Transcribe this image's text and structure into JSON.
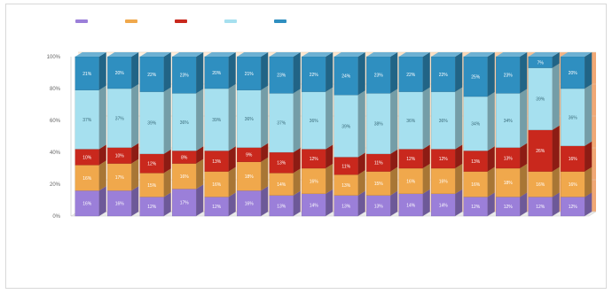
{
  "chart_data": {
    "type": "bar",
    "stacked": true,
    "percent_stacked": true,
    "three_d": true,
    "categories": [
      "",
      "",
      "",
      "",
      "",
      "",
      "",
      "",
      "",
      "",
      "",
      "",
      "",
      "",
      "",
      ""
    ],
    "series": [
      {
        "name": "",
        "color": "#9b7fd9",
        "values": [
          16,
          16,
          12,
          17,
          12,
          16,
          13,
          14,
          13,
          13,
          14,
          14,
          12,
          12,
          12,
          12
        ]
      },
      {
        "name": "",
        "color": "#f0a84c",
        "values": [
          16,
          17,
          15,
          16,
          16,
          18,
          14,
          16,
          13,
          15,
          16,
          16,
          16,
          18,
          16,
          16
        ]
      },
      {
        "name": "",
        "color": "#c9281d",
        "values": [
          10,
          10,
          12,
          8,
          13,
          9,
          13,
          12,
          11,
          11,
          12,
          12,
          13,
          13,
          26,
          16
        ]
      },
      {
        "name": "",
        "color": "#a6e0ef",
        "values": [
          37,
          37,
          39,
          36,
          39,
          36,
          37,
          36,
          39,
          38,
          36,
          36,
          34,
          34,
          39,
          36
        ]
      },
      {
        "name": "",
        "color": "#2f8fc0",
        "values": [
          21,
          20,
          22,
          23,
          20,
          21,
          23,
          22,
          24,
          23,
          22,
          22,
          25,
          23,
          7,
          20
        ]
      }
    ],
    "ylim": [
      0,
      100
    ],
    "yticks": [
      "0%",
      "20%",
      "40%",
      "60%",
      "80%",
      "100%"
    ],
    "title": "",
    "xlabel": "",
    "ylabel": "",
    "legend_position": "top",
    "grid": true
  }
}
